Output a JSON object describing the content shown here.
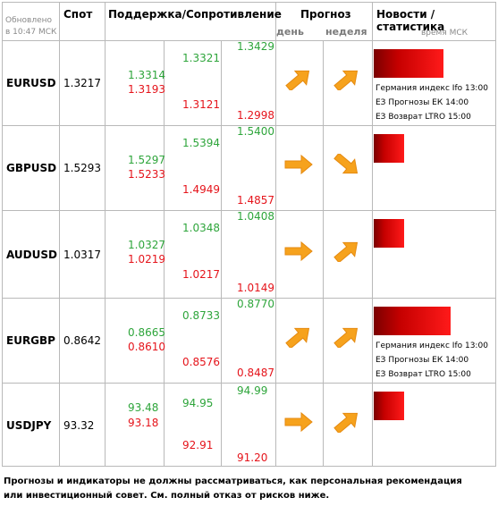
{
  "header": {
    "updated": "Обновлено в 10:47 МСК",
    "spot": "Спот",
    "support": "Поддержка/Сопротивление",
    "forecast": "Прогноз",
    "day": "день",
    "week": "неделя",
    "news": "Новости / статистика",
    "time_msk": "время МСК"
  },
  "rows": [
    {
      "pair": "EURUSD",
      "spot": "1.3217",
      "levels": {
        "s1g": "1.3314",
        "s1r": "1.3193",
        "s2g": "1.3321",
        "s2r": "1.3121",
        "s3g": "1.3429",
        "s3r": "1.2998"
      },
      "day_arrow": "arrow-up-right-icon",
      "week_arrow": "arrow-up-right-icon",
      "news_bar": 0.78,
      "news": [
        "Германия индекс Ifo 13:00",
        "ЕЗ Прогнозы ЕК 14:00",
        "ЕЗ Возврат LTRO 15:00"
      ]
    },
    {
      "pair": "GBPUSD",
      "spot": "1.5293",
      "levels": {
        "s1g": "1.5297",
        "s1r": "1.5233",
        "s2g": "1.5394",
        "s2r": "1.4949",
        "s3g": "1.5400",
        "s3r": "1.4857"
      },
      "day_arrow": "arrow-right-icon",
      "week_arrow": "arrow-down-right-icon",
      "news_bar": 0.34,
      "news": []
    },
    {
      "pair": "AUDUSD",
      "spot": "1.0317",
      "levels": {
        "s1g": "1.0327",
        "s1r": "1.0219",
        "s2g": "1.0348",
        "s2r": "1.0217",
        "s3g": "1.0408",
        "s3r": "1.0149"
      },
      "day_arrow": "arrow-right-icon",
      "week_arrow": "arrow-up-right-icon",
      "news_bar": 0.34,
      "news": []
    },
    {
      "pair": "EURGBP",
      "spot": "0.8642",
      "levels": {
        "s1g": "0.8665",
        "s1r": "0.8610",
        "s2g": "0.8733",
        "s2r": "0.8576",
        "s3g": "0.8770",
        "s3r": "0.8487"
      },
      "day_arrow": "arrow-up-right-icon",
      "week_arrow": "arrow-up-right-icon",
      "news_bar": 0.86,
      "news": [
        "Германия индекс Ifo 13:00",
        "ЕЗ Прогнозы ЕК 14:00",
        "ЕЗ Возврат LTRO 15:00"
      ]
    },
    {
      "pair": "USDJPY",
      "spot": "93.32",
      "levels": {
        "s1g": "93.48",
        "s1r": "93.18",
        "s2g": "94.95",
        "s2r": "92.91",
        "s3g": "94.99",
        "s3r": "91.20"
      },
      "day_arrow": "arrow-right-icon",
      "week_arrow": "arrow-up-right-icon",
      "news_bar": 0.34,
      "news": []
    }
  ],
  "disclaimer": "Прогнозы и индикаторы не должны рассматриваться, как персональная рекомендация или инвестиционный совет. См. полный отказ от рисков ниже.",
  "colors": {
    "support_green": "#2ea53b",
    "resistance_red": "#e5141b",
    "arrow_orange": "#f6a21d",
    "bar_red": "#c60000"
  }
}
